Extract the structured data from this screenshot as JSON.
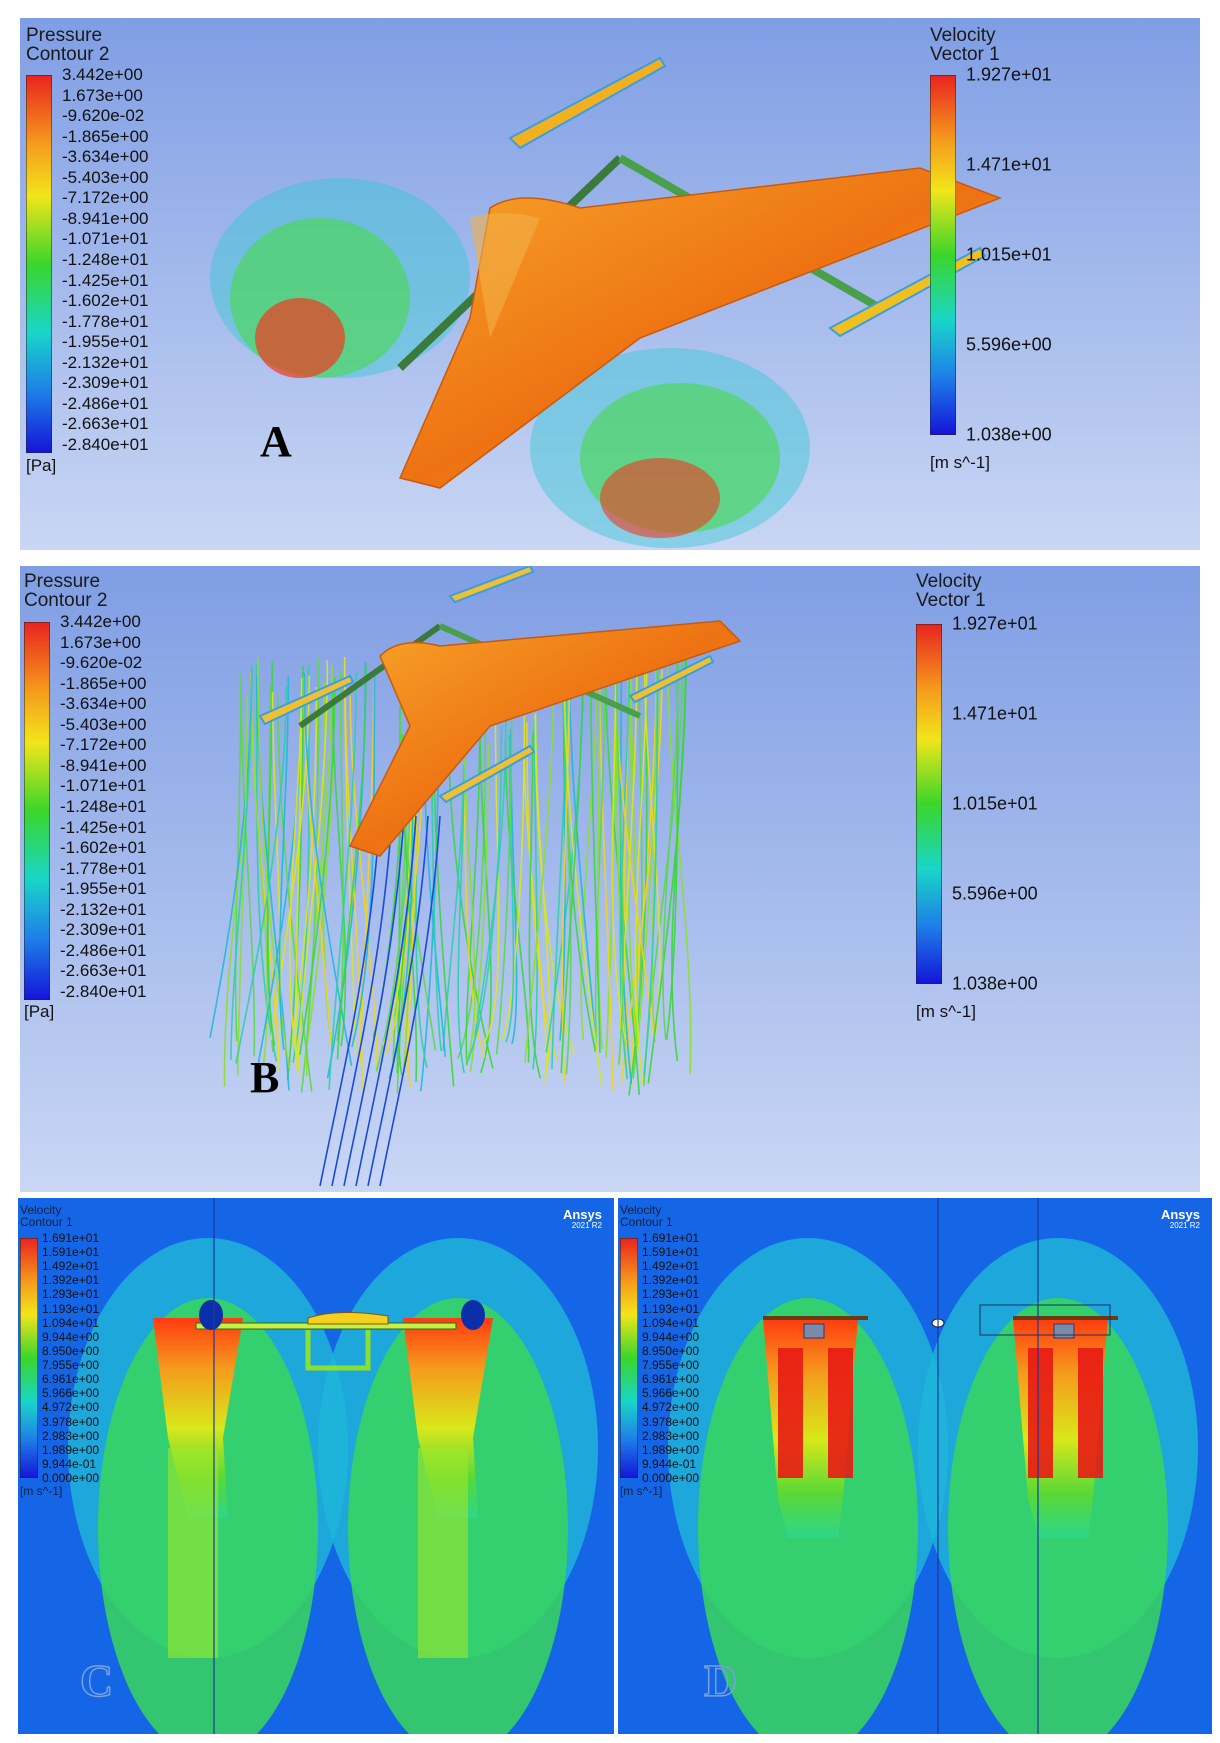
{
  "panels": {
    "A": {
      "label": "A",
      "pressure_legend": {
        "title": "Pressure",
        "subtitle": "Contour 2",
        "unit": "[Pa]",
        "ticks": [
          "3.442e+00",
          "1.673e+00",
          "-9.620e-02",
          "-1.865e+00",
          "-3.634e+00",
          "-5.403e+00",
          "-7.172e+00",
          "-8.941e+00",
          "-1.071e+01",
          "-1.248e+01",
          "-1.425e+01",
          "-1.602e+01",
          "-1.778e+01",
          "-1.955e+01",
          "-2.132e+01",
          "-2.309e+01",
          "-2.486e+01",
          "-2.663e+01",
          "-2.840e+01"
        ]
      },
      "velocity_legend": {
        "title": "Velocity",
        "subtitle": "Vector 1",
        "unit": "[m s^-1]",
        "ticks": [
          "1.927e+01",
          "1.471e+01",
          "1.015e+01",
          "5.596e+00",
          "1.038e+00"
        ]
      }
    },
    "B": {
      "label": "B",
      "pressure_legend": {
        "title": "Pressure",
        "subtitle": "Contour 2",
        "unit": "[Pa]",
        "ticks": [
          "3.442e+00",
          "1.673e+00",
          "-9.620e-02",
          "-1.865e+00",
          "-3.634e+00",
          "-5.403e+00",
          "-7.172e+00",
          "-8.941e+00",
          "-1.071e+01",
          "-1.248e+01",
          "-1.425e+01",
          "-1.602e+01",
          "-1.778e+01",
          "-1.955e+01",
          "-2.132e+01",
          "-2.309e+01",
          "-2.486e+01",
          "-2.663e+01",
          "-2.840e+01"
        ]
      },
      "velocity_legend": {
        "title": "Velocity",
        "subtitle": "Vector 1",
        "unit": "[m s^-1]",
        "ticks": [
          "1.927e+01",
          "1.471e+01",
          "1.015e+01",
          "5.596e+00",
          "1.038e+00"
        ]
      }
    },
    "C": {
      "label": "C",
      "brand": "Ansys",
      "version": "2021 R2",
      "velocity_legend": {
        "title": "Velocity",
        "subtitle": "Contour 1",
        "unit": "[m s^-1]",
        "ticks": [
          "1.691e+01",
          "1.591e+01",
          "1.492e+01",
          "1.392e+01",
          "1.293e+01",
          "1.193e+01",
          "1.094e+01",
          "9.944e+00",
          "8.950e+00",
          "7.955e+00",
          "6.961e+00",
          "5.966e+00",
          "4.972e+00",
          "3.978e+00",
          "2.983e+00",
          "1.989e+00",
          "9.944e-01",
          "0.000e+00"
        ]
      }
    },
    "D": {
      "label": "D",
      "brand": "Ansys",
      "version": "2021 R2",
      "velocity_legend": {
        "title": "Velocity",
        "subtitle": "Contour 1",
        "unit": "[m s^-1]",
        "ticks": [
          "1.691e+01",
          "1.591e+01",
          "1.492e+01",
          "1.392e+01",
          "1.293e+01",
          "1.193e+01",
          "1.094e+01",
          "9.944e+00",
          "8.950e+00",
          "7.955e+00",
          "6.961e+00",
          "5.966e+00",
          "4.972e+00",
          "3.978e+00",
          "2.983e+00",
          "1.989e+00",
          "9.944e-01",
          "0.000e+00"
        ]
      }
    }
  },
  "colors": {
    "background_top": "#7f9ee4",
    "background_bottom": "#c9d6f4",
    "contour_bg": "#1466e6",
    "aircraft": "#ef7a12"
  }
}
